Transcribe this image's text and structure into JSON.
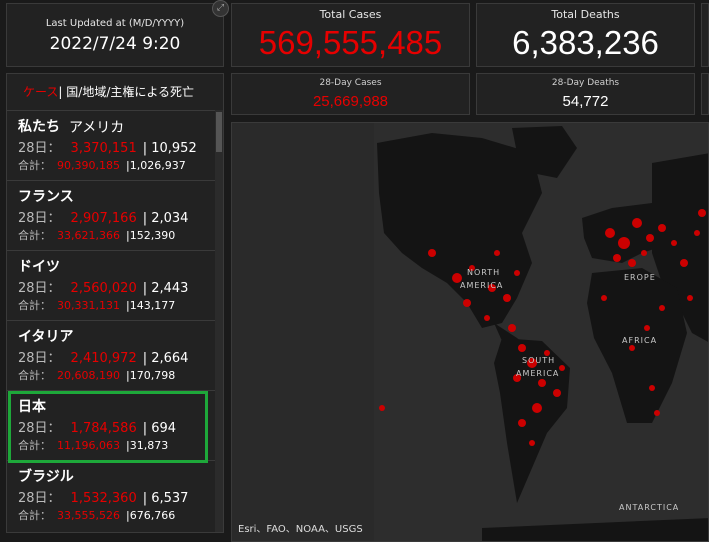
{
  "last_updated": {
    "label": "Last Updated at (M/D/YYYY)",
    "value": "2022/7/24 9:20"
  },
  "total_cases": {
    "label": "Total Cases",
    "value": "569,555,485"
  },
  "total_deaths": {
    "label": "Total Deaths",
    "value": "6,383,236"
  },
  "cases_28": {
    "label": "28-Day Cases",
    "value": "25,669,988"
  },
  "deaths_28": {
    "label": "28-Day Deaths",
    "value": "54,772"
  },
  "list": {
    "tab_cases": "ケース",
    "tab_sep": "|",
    "tab_deaths": "国/地域/主権による死亡",
    "prefix_28": "28日：",
    "prefix_total": "合計：",
    "items": [
      {
        "name": "私たち",
        "name2": "アメリカ",
        "cases28": "3,370,151",
        "deaths28": "10,952",
        "cases_total": "90,390,185",
        "deaths_total": "1,026,937"
      },
      {
        "name": "フランス",
        "name2": "",
        "cases28": "2,907,166",
        "deaths28": "2,034",
        "cases_total": "33,621,366",
        "deaths_total": "152,390"
      },
      {
        "name": "ドイツ",
        "name2": "",
        "cases28": "2,560,020",
        "deaths28": "2,443",
        "cases_total": "30,331,131",
        "deaths_total": "143,177"
      },
      {
        "name": "イタリア",
        "name2": "",
        "cases28": "2,410,972",
        "deaths28": "2,664",
        "cases_total": "20,608,190",
        "deaths_total": "170,798"
      },
      {
        "name": "日本",
        "name2": "",
        "cases28": "1,784,586",
        "deaths28": "694",
        "cases_total": "11,196,063",
        "deaths_total": "31,873"
      },
      {
        "name": "ブラジル",
        "name2": "",
        "cases28": "1,532,360",
        "deaths28": "6,537",
        "cases_total": "33,555,526",
        "deaths_total": "676,766"
      }
    ]
  },
  "map": {
    "labels": {
      "north_america": [
        "NORTH",
        "AMERICA"
      ],
      "south_america": [
        "SOUTH",
        "AMERICA"
      ],
      "europe": "EROPE",
      "africa": "AFRICA",
      "antarctica": "ANTARCTICA"
    },
    "attribution": "Esri、FAO、NOAA、USGS"
  },
  "colors": {
    "accent_red": "#e60000",
    "highlight_green": "#1ea83a",
    "land": "#141414",
    "ocean": "#2a2a2a"
  }
}
